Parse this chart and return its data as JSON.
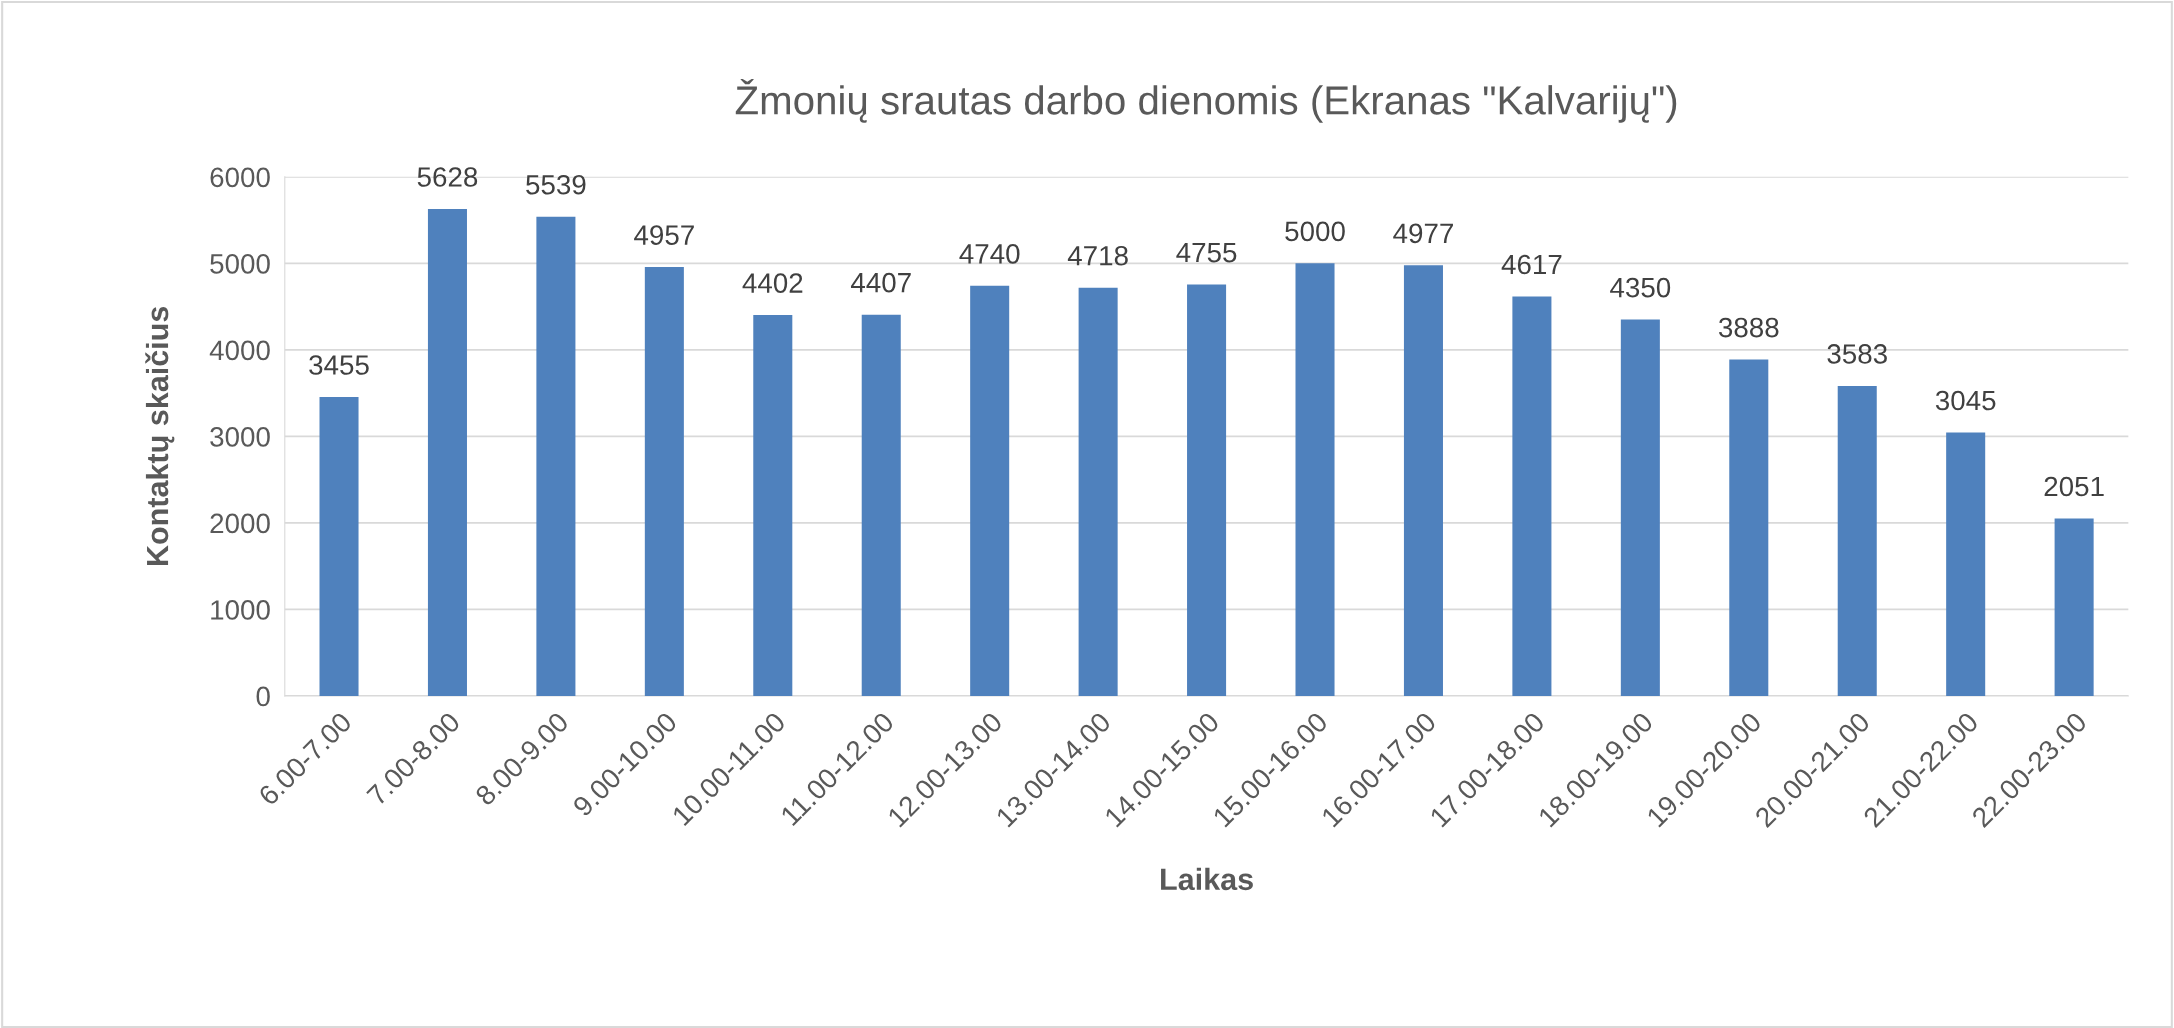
{
  "chart_data": {
    "type": "bar",
    "title": "Žmonių srautas darbo dienomis (Ekranas \"Kalvarijų\")",
    "xlabel": "Laikas",
    "ylabel": "Kontaktų skaičius",
    "categories": [
      "6.00-7.00",
      "7.00-8.00",
      "8.00-9.00",
      "9.00-10.00",
      "10.00-11.00",
      "11.00-12.00",
      "12.00-13.00",
      "13.00-14.00",
      "14.00-15.00",
      "15.00-16.00",
      "16.00-17.00",
      "17.00-18.00",
      "18.00-19.00",
      "19.00-20.00",
      "20.00-21.00",
      "21.00-22.00",
      "22.00-23.00"
    ],
    "values": [
      3455,
      5628,
      5539,
      4957,
      4402,
      4407,
      4740,
      4718,
      4755,
      5000,
      4977,
      4617,
      4350,
      3888,
      3583,
      3045,
      2051
    ],
    "color": "#4f81bd",
    "ylim": [
      0,
      6000
    ],
    "yticks": [
      0,
      1000,
      2000,
      3000,
      4000,
      5000,
      6000
    ],
    "grid": "y",
    "data_labels": true,
    "legend": false
  }
}
